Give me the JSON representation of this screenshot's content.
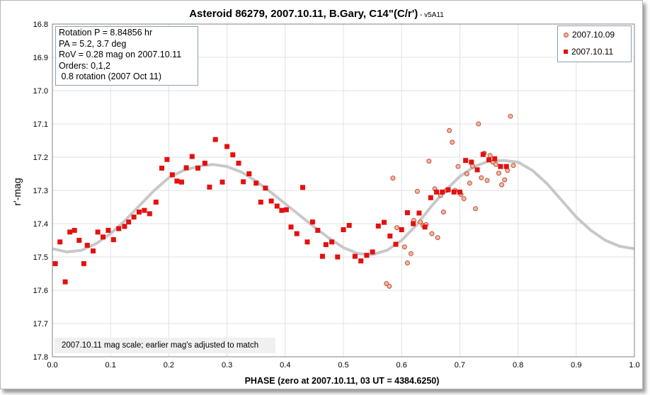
{
  "chart_data": {
    "type": "scatter",
    "title": "Asteroid 86279, 2007.10.11, B.Gary, C14\"(C/r')",
    "title_suffix": " - v5A11",
    "xlabel": "PHASE (zero at 2007.10.11, 03 UT = 4384.6250)",
    "ylabel": "r'-mag",
    "xlim": [
      0.0,
      1.0
    ],
    "ylim": [
      17.8,
      16.8
    ],
    "y_inverted": true,
    "x_ticks": [
      "0.0",
      "0.1",
      "0.2",
      "0.3",
      "0.4",
      "0.5",
      "0.6",
      "0.7",
      "0.8",
      "0.9",
      "1.0"
    ],
    "y_ticks": [
      "16.8",
      "16.9",
      "17.0",
      "17.1",
      "17.2",
      "17.3",
      "17.4",
      "17.5",
      "17.6",
      "17.7",
      "17.8"
    ],
    "grid": true,
    "legend_position": "top-right",
    "info_lines": [
      "Rotation P = 8.84856 hr",
      "PA =  5.2, 3.7 deg",
      "RoV = 0.28 mag on 2007.10.11",
      "Orders: 0,1,2",
      " 0.8 rotation (2007 Oct 11)"
    ],
    "note": "2007.10.11 mag scale; earlier mag's adjusted to match",
    "colors": {
      "series_1011": "#e41010",
      "series_1009_fill": "#f3b7a0",
      "series_1009_edge": "#c0503a",
      "fit_curve": "#c8c8c8",
      "grid": "#e0e0e0"
    },
    "series": [
      {
        "name": "2007.10.09",
        "marker": "circle",
        "x": [
          0.574,
          0.579,
          0.585,
          0.592,
          0.605,
          0.61,
          0.616,
          0.621,
          0.627,
          0.632,
          0.637,
          0.642,
          0.647,
          0.652,
          0.657,
          0.662,
          0.667,
          0.672,
          0.677,
          0.682,
          0.687,
          0.692,
          0.697,
          0.702,
          0.707,
          0.712,
          0.717,
          0.722,
          0.727,
          0.732,
          0.737,
          0.742,
          0.747,
          0.752,
          0.757,
          0.762,
          0.767,
          0.772,
          0.777,
          0.782,
          0.787,
          0.792
        ],
        "y": [
          17.58,
          17.588,
          17.263,
          17.412,
          17.47,
          17.518,
          17.49,
          17.39,
          17.303,
          17.395,
          17.405,
          17.403,
          17.212,
          17.43,
          17.295,
          17.442,
          17.315,
          17.365,
          17.3,
          17.12,
          17.155,
          17.3,
          17.228,
          17.312,
          17.325,
          17.25,
          17.278,
          17.227,
          17.355,
          17.1,
          17.262,
          17.188,
          17.27,
          17.195,
          17.215,
          17.222,
          17.248,
          17.283,
          17.268,
          17.24,
          17.077,
          17.225
        ]
      },
      {
        "name": "2007.10.11",
        "marker": "square",
        "x": [
          0.005,
          0.013,
          0.022,
          0.03,
          0.038,
          0.046,
          0.054,
          0.06,
          0.07,
          0.078,
          0.087,
          0.096,
          0.105,
          0.114,
          0.124,
          0.131,
          0.14,
          0.149,
          0.158,
          0.167,
          0.178,
          0.188,
          0.197,
          0.206,
          0.214,
          0.222,
          0.23,
          0.24,
          0.25,
          0.262,
          0.27,
          0.28,
          0.292,
          0.3,
          0.31,
          0.32,
          0.328,
          0.338,
          0.35,
          0.358,
          0.366,
          0.376,
          0.386,
          0.394,
          0.402,
          0.41,
          0.42,
          0.43,
          0.438,
          0.447,
          0.456,
          0.464,
          0.47,
          0.48,
          0.49,
          0.5,
          0.51,
          0.52,
          0.53,
          0.54,
          0.55,
          0.56,
          0.57,
          0.58,
          0.59,
          0.6,
          0.61,
          0.62,
          0.63,
          0.64,
          0.65,
          0.66,
          0.67,
          0.68,
          0.69,
          0.7,
          0.71,
          0.72,
          0.73,
          0.74,
          0.75,
          0.76,
          0.77,
          0.78
        ],
        "y": [
          17.52,
          17.455,
          17.575,
          17.425,
          17.42,
          17.45,
          17.52,
          17.465,
          17.482,
          17.425,
          17.44,
          17.42,
          17.448,
          17.415,
          17.408,
          17.395,
          17.38,
          17.365,
          17.36,
          17.37,
          17.335,
          17.233,
          17.207,
          17.253,
          17.272,
          17.275,
          17.232,
          17.198,
          17.233,
          17.218,
          17.29,
          17.147,
          17.275,
          17.168,
          17.193,
          17.218,
          17.274,
          17.25,
          17.278,
          17.335,
          17.293,
          17.332,
          17.347,
          17.36,
          17.358,
          17.41,
          17.43,
          17.291,
          17.455,
          17.395,
          17.42,
          17.498,
          17.463,
          17.455,
          17.5,
          17.418,
          17.405,
          17.498,
          17.512,
          17.495,
          17.485,
          17.407,
          17.396,
          17.437,
          17.462,
          17.418,
          17.367,
          17.4,
          17.368,
          17.41,
          17.322,
          17.305,
          17.305,
          17.298,
          17.305,
          17.305,
          17.21,
          17.215,
          17.238,
          17.192,
          17.208,
          17.205,
          17.228,
          17.228
        ]
      },
      {
        "name": "fit",
        "marker": "line",
        "x": [
          0.0,
          0.025,
          0.05,
          0.075,
          0.1,
          0.125,
          0.15,
          0.175,
          0.2,
          0.225,
          0.25,
          0.275,
          0.3,
          0.325,
          0.35,
          0.375,
          0.4,
          0.425,
          0.45,
          0.475,
          0.5,
          0.525,
          0.55,
          0.575,
          0.6,
          0.625,
          0.65,
          0.675,
          0.7,
          0.725,
          0.75,
          0.775,
          0.8,
          0.825,
          0.85,
          0.875,
          0.9,
          0.925,
          0.95,
          0.975,
          1.0
        ],
        "y": [
          17.475,
          17.485,
          17.48,
          17.46,
          17.43,
          17.39,
          17.345,
          17.3,
          17.262,
          17.24,
          17.228,
          17.222,
          17.228,
          17.245,
          17.272,
          17.305,
          17.34,
          17.375,
          17.41,
          17.443,
          17.472,
          17.49,
          17.493,
          17.48,
          17.45,
          17.405,
          17.35,
          17.3,
          17.258,
          17.228,
          17.212,
          17.21,
          17.215,
          17.24,
          17.28,
          17.33,
          17.38,
          17.42,
          17.45,
          17.468,
          17.475
        ]
      }
    ]
  }
}
